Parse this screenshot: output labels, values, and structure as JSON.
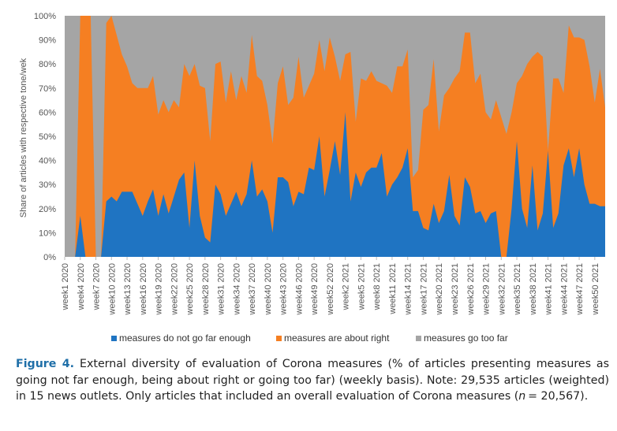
{
  "chart_data": {
    "type": "area",
    "stacked": true,
    "title": "",
    "xlabel": "",
    "ylabel": "Share of articles with respective tone/wek",
    "ylim": [
      0,
      100
    ],
    "yticks": [
      "0%",
      "10%",
      "20%",
      "30%",
      "40%",
      "50%",
      "60%",
      "70%",
      "80%",
      "90%",
      "100%"
    ],
    "x_tick_labels": [
      "week1 2020",
      "week4 2020",
      "week7 2020",
      "week10 2020",
      "week13 2020",
      "week16 2020",
      "week19 2020",
      "week22 2020",
      "week25 2020",
      "week28 2020",
      "week31 2020",
      "week34 2020",
      "week37 2020",
      "week40 2020",
      "week43 2020",
      "week46 2020",
      "week49 2020",
      "week52 2020",
      "week2 2021",
      "week5 2021",
      "week8 2021",
      "week11 2021",
      "week14 2021",
      "week17 2021",
      "week20 2021",
      "week23 2021",
      "week26 2021",
      "week29 2021",
      "week32 2021",
      "week35 2021",
      "week38 2021",
      "week41 2021",
      "week44 2021",
      "week47 2021",
      "week50 2021"
    ],
    "legend_position": "bottom",
    "colors": {
      "blue": "#1f74c2",
      "orange": "#f57f22",
      "gray": "#a5a5a5"
    },
    "series": [
      {
        "name": "measures do not go far enough",
        "values": [
          0,
          0,
          0,
          17,
          0,
          0,
          0,
          0,
          23,
          25,
          23,
          27,
          27,
          27,
          22,
          17,
          23,
          28,
          17,
          26,
          18,
          25,
          32,
          35,
          12,
          40,
          17,
          8,
          6,
          30,
          26,
          17,
          22,
          27,
          21,
          26,
          40,
          25,
          28,
          23,
          10,
          33,
          33,
          31,
          21,
          27,
          26,
          37,
          36,
          50,
          25,
          36,
          48,
          34,
          60,
          23,
          35,
          29,
          35,
          37,
          37,
          43,
          25,
          30,
          33,
          37,
          45,
          19,
          19,
          12,
          11,
          22,
          14,
          19,
          34,
          17,
          13,
          33,
          29,
          18,
          19,
          14,
          18,
          19,
          0,
          0,
          20,
          48,
          20,
          12,
          38,
          11,
          18,
          44,
          12,
          18,
          38,
          45,
          33,
          45,
          30,
          22,
          22,
          21,
          21
        ]
      },
      {
        "name": "measures are about right",
        "values": [
          0,
          0,
          0,
          83,
          100,
          100,
          0,
          0,
          74,
          75,
          69,
          57,
          52,
          45,
          48,
          53,
          47,
          47,
          42,
          39,
          42,
          40,
          30,
          45,
          63,
          40,
          54,
          62,
          42,
          50,
          55,
          47,
          55,
          38,
          54,
          42,
          52,
          50,
          45,
          40,
          37,
          39,
          46,
          32,
          45,
          56,
          40,
          34,
          40,
          40,
          52,
          55,
          35,
          39,
          24,
          62,
          21,
          45,
          38,
          40,
          36,
          29,
          46,
          38,
          46,
          42,
          41,
          14,
          17,
          49,
          52,
          60,
          38,
          48,
          36,
          57,
          64,
          60,
          64,
          54,
          57,
          46,
          39,
          46,
          58,
          51,
          40,
          24,
          55,
          68,
          45,
          74,
          65,
          0,
          62,
          56,
          30,
          51,
          58,
          46,
          60,
          57,
          42,
          57,
          41
        ]
      }
    ]
  },
  "legend": [
    {
      "label": "measures do not go far enough",
      "color": "#1f74c2"
    },
    {
      "label": "measures are about right",
      "color": "#f57f22"
    },
    {
      "label": "measures go too far",
      "color": "#a5a5a5"
    }
  ],
  "caption": {
    "label": "Figure 4.",
    "text": "External diversity of evaluation of Corona measures (% of articles presenting measures as going not far enough, being about right or going too far) (weekly basis). Note: 29,535 articles (weighted) in 15 news outlets. Only articles that included an overall evaluation of Corona measures (",
    "n_symbol": "n",
    "text_end": "= 20,567)."
  }
}
